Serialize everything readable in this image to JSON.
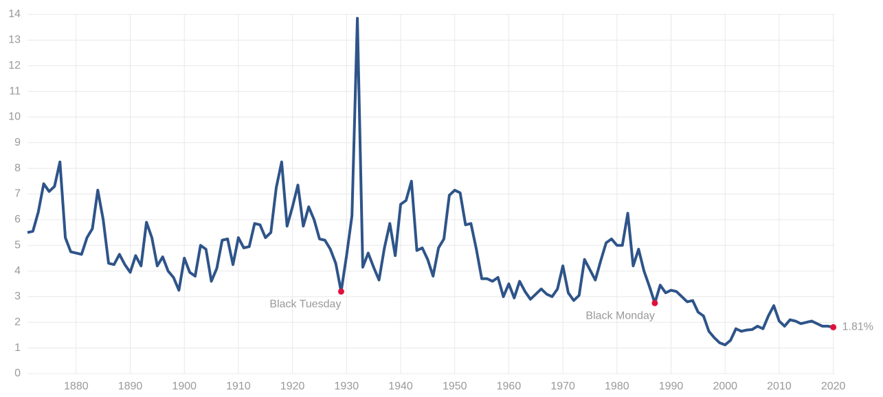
{
  "chart_data": {
    "type": "line",
    "x": [
      1871,
      1872,
      1873,
      1874,
      1875,
      1876,
      1877,
      1878,
      1879,
      1880,
      1881,
      1882,
      1883,
      1884,
      1885,
      1886,
      1887,
      1888,
      1889,
      1890,
      1891,
      1892,
      1893,
      1894,
      1895,
      1896,
      1897,
      1898,
      1899,
      1900,
      1901,
      1902,
      1903,
      1904,
      1905,
      1906,
      1907,
      1908,
      1909,
      1910,
      1911,
      1912,
      1913,
      1914,
      1915,
      1916,
      1917,
      1918,
      1919,
      1920,
      1921,
      1922,
      1923,
      1924,
      1925,
      1926,
      1927,
      1928,
      1929,
      1930,
      1931,
      1932,
      1933,
      1934,
      1935,
      1936,
      1937,
      1938,
      1939,
      1940,
      1941,
      1942,
      1943,
      1944,
      1945,
      1946,
      1947,
      1948,
      1949,
      1950,
      1951,
      1952,
      1953,
      1954,
      1955,
      1956,
      1957,
      1958,
      1959,
      1960,
      1961,
      1962,
      1963,
      1964,
      1965,
      1966,
      1967,
      1968,
      1969,
      1970,
      1971,
      1972,
      1973,
      1974,
      1975,
      1976,
      1977,
      1978,
      1979,
      1980,
      1981,
      1982,
      1983,
      1984,
      1985,
      1986,
      1987,
      1988,
      1989,
      1990,
      1991,
      1992,
      1993,
      1994,
      1995,
      1996,
      1997,
      1998,
      1999,
      2000,
      2001,
      2002,
      2003,
      2004,
      2005,
      2006,
      2007,
      2008,
      2009,
      2010,
      2011,
      2012,
      2013,
      2014,
      2015,
      2016,
      2017,
      2018,
      2019,
      2020
    ],
    "series": [
      {
        "color": "#2e5489",
        "values": [
          5.5,
          5.55,
          6.3,
          7.4,
          7.1,
          7.3,
          8.25,
          5.3,
          4.75,
          4.7,
          4.65,
          5.3,
          5.65,
          7.15,
          6.0,
          4.3,
          4.25,
          4.65,
          4.25,
          3.95,
          4.6,
          4.2,
          5.9,
          5.3,
          4.2,
          4.55,
          4.0,
          3.75,
          3.25,
          4.5,
          3.95,
          3.8,
          5.0,
          4.85,
          3.6,
          4.1,
          5.2,
          5.25,
          4.25,
          5.3,
          4.9,
          4.95,
          5.85,
          5.8,
          5.3,
          5.5,
          7.25,
          8.25,
          5.75,
          6.5,
          7.35,
          5.75,
          6.5,
          6.0,
          5.25,
          5.2,
          4.85,
          4.3,
          3.2,
          4.6,
          6.15,
          13.85,
          4.15,
          4.7,
          4.15,
          3.65,
          4.9,
          5.85,
          4.6,
          6.6,
          6.75,
          7.5,
          4.8,
          4.9,
          4.45,
          3.8,
          4.9,
          5.25,
          6.95,
          7.15,
          7.05,
          5.8,
          5.85,
          4.85,
          3.7,
          3.7,
          3.6,
          3.75,
          3.0,
          3.5,
          2.95,
          3.6,
          3.2,
          2.9,
          3.1,
          3.3,
          3.1,
          3.0,
          3.3,
          4.2,
          3.15,
          2.85,
          3.05,
          4.45,
          4.05,
          3.65,
          4.4,
          5.1,
          5.25,
          5.0,
          5.0,
          6.25,
          4.2,
          4.85,
          4.0,
          3.4,
          2.75,
          3.45,
          3.15,
          3.25,
          3.2,
          3.0,
          2.8,
          2.85,
          2.4,
          2.25,
          1.65,
          1.4,
          1.2,
          1.12,
          1.3,
          1.75,
          1.65,
          1.7,
          1.72,
          1.85,
          1.75,
          2.25,
          2.65,
          2.05,
          1.85,
          2.1,
          2.05,
          1.95,
          2.0,
          2.05,
          1.95,
          1.85,
          1.85,
          1.81
        ]
      }
    ],
    "annotations": [
      {
        "text": "Black Tuesday",
        "x": 1929,
        "y": 3.2,
        "color": "#e0103a"
      },
      {
        "text": "Black Monday",
        "x": 1987,
        "y": 2.75,
        "color": "#e0103a"
      },
      {
        "text": "1.81%",
        "x": 2020,
        "y": 1.81,
        "color": "#e0103a"
      }
    ],
    "xlim": [
      1871,
      2020.3
    ],
    "ylim": [
      0,
      14
    ],
    "xticks": [
      1880,
      1890,
      1900,
      1910,
      1920,
      1930,
      1940,
      1950,
      1960,
      1970,
      1980,
      1990,
      2000,
      2010,
      2020
    ],
    "yticks": [
      0,
      1,
      2,
      3,
      4,
      5,
      6,
      7,
      8,
      9,
      10,
      11,
      12,
      13,
      14
    ],
    "grid": true
  }
}
